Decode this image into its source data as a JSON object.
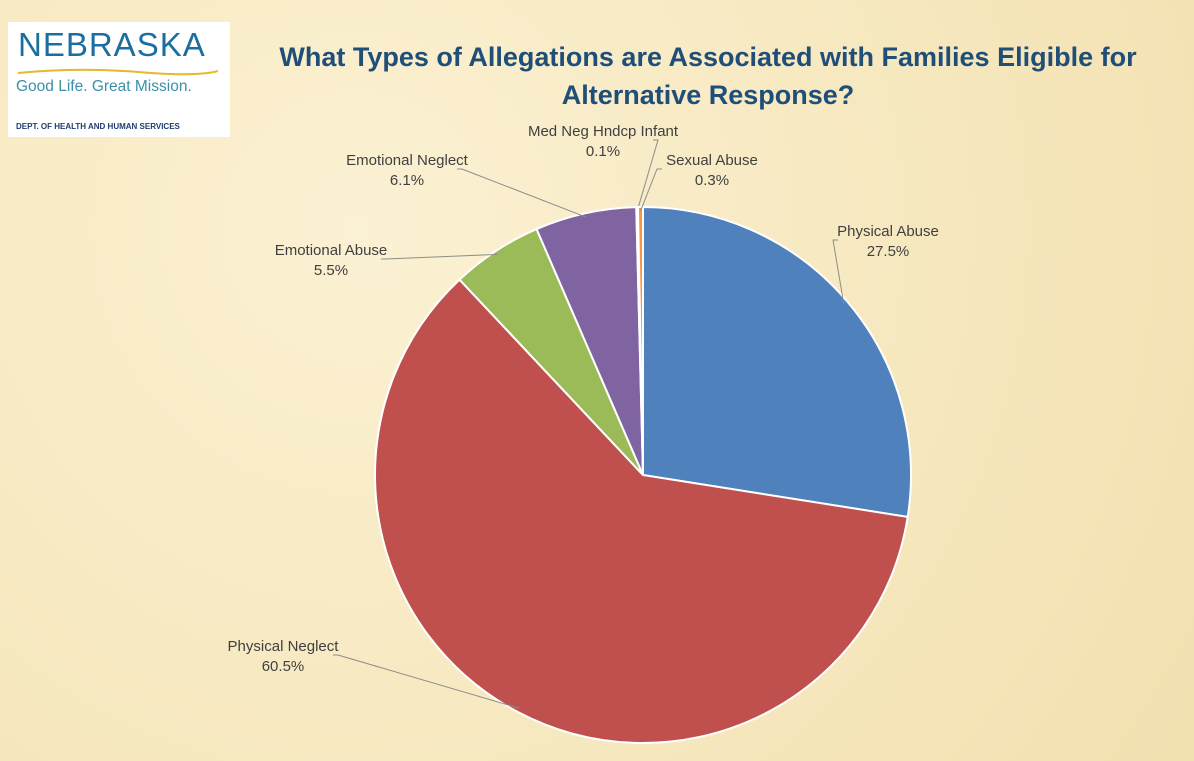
{
  "logo": {
    "name": "NEBRASKA",
    "tagline": "Good Life. Great Mission.",
    "department": "DEPT. OF HEALTH AND HUMAN SERVICES"
  },
  "chart_data": {
    "type": "pie",
    "title": "What Types of Allegations are Associated with Families Eligible for Alternative Response?",
    "categories": [
      "Physical Abuse",
      "Physical Neglect",
      "Emotional Abuse",
      "Emotional Neglect",
      "Med Neg Hndcp Infant",
      "Sexual Abuse"
    ],
    "values": [
      27.5,
      60.5,
      5.5,
      6.1,
      0.1,
      0.3
    ],
    "value_labels": [
      "27.5%",
      "60.5%",
      "5.5%",
      "6.1%",
      "0.1%",
      "0.3%"
    ],
    "colors": [
      "#4f81bd",
      "#c0504d",
      "#9bbb59",
      "#8064a2",
      "#4bacc6",
      "#f79646"
    ]
  }
}
